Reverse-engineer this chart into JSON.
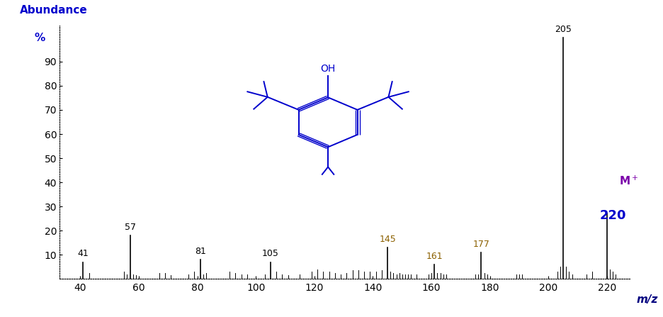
{
  "xlim": [
    33,
    228
  ],
  "ylim": [
    0,
    105
  ],
  "xticks": [
    40,
    60,
    80,
    100,
    120,
    140,
    160,
    180,
    200,
    220
  ],
  "yticks": [
    10,
    20,
    30,
    40,
    50,
    60,
    70,
    80,
    90
  ],
  "xlabel": "m/z",
  "ylabel_line1": "Abundance",
  "ylabel_line2": "%",
  "bg_color": "#ffffff",
  "label_color_black": "#000000",
  "label_color_brown": "#8B6000",
  "label_color_blue": "#0000cc",
  "mplus_color": "#7B00AA",
  "peaks": [
    {
      "mz": 41,
      "intensity": 7,
      "label": "41",
      "label_color": "#000000"
    },
    {
      "mz": 57,
      "intensity": 18,
      "label": "57",
      "label_color": "#000000"
    },
    {
      "mz": 81,
      "intensity": 8,
      "label": "81",
      "label_color": "#000000"
    },
    {
      "mz": 105,
      "intensity": 7,
      "label": "105",
      "label_color": "#000000"
    },
    {
      "mz": 145,
      "intensity": 13,
      "label": "145",
      "label_color": "#8B6000"
    },
    {
      "mz": 161,
      "intensity": 6,
      "label": "161",
      "label_color": "#8B6000"
    },
    {
      "mz": 177,
      "intensity": 11,
      "label": "177",
      "label_color": "#8B6000"
    },
    {
      "mz": 205,
      "intensity": 100,
      "label": "205",
      "label_color": "#000000"
    },
    {
      "mz": 220,
      "intensity": 27,
      "label": "",
      "label_color": "#0000cc"
    }
  ],
  "small_peaks": [
    {
      "mz": 43,
      "intensity": 2.5
    },
    {
      "mz": 55,
      "intensity": 3
    },
    {
      "mz": 56,
      "intensity": 2
    },
    {
      "mz": 58,
      "intensity": 2
    },
    {
      "mz": 59,
      "intensity": 1.5
    },
    {
      "mz": 67,
      "intensity": 2.5
    },
    {
      "mz": 69,
      "intensity": 2.5
    },
    {
      "mz": 71,
      "intensity": 1.5
    },
    {
      "mz": 77,
      "intensity": 2
    },
    {
      "mz": 79,
      "intensity": 3
    },
    {
      "mz": 82,
      "intensity": 2
    },
    {
      "mz": 83,
      "intensity": 2.5
    },
    {
      "mz": 91,
      "intensity": 3
    },
    {
      "mz": 93,
      "intensity": 2.5
    },
    {
      "mz": 95,
      "intensity": 2
    },
    {
      "mz": 97,
      "intensity": 2
    },
    {
      "mz": 103,
      "intensity": 2
    },
    {
      "mz": 107,
      "intensity": 3
    },
    {
      "mz": 109,
      "intensity": 2
    },
    {
      "mz": 111,
      "intensity": 1.5
    },
    {
      "mz": 115,
      "intensity": 2
    },
    {
      "mz": 119,
      "intensity": 3
    },
    {
      "mz": 121,
      "intensity": 4
    },
    {
      "mz": 123,
      "intensity": 3
    },
    {
      "mz": 125,
      "intensity": 3
    },
    {
      "mz": 127,
      "intensity": 2.5
    },
    {
      "mz": 129,
      "intensity": 2
    },
    {
      "mz": 131,
      "intensity": 2.5
    },
    {
      "mz": 133,
      "intensity": 3.5
    },
    {
      "mz": 135,
      "intensity": 3.5
    },
    {
      "mz": 137,
      "intensity": 3
    },
    {
      "mz": 139,
      "intensity": 3
    },
    {
      "mz": 141,
      "intensity": 3
    },
    {
      "mz": 143,
      "intensity": 3.5
    },
    {
      "mz": 146,
      "intensity": 3
    },
    {
      "mz": 147,
      "intensity": 2.5
    },
    {
      "mz": 148,
      "intensity": 2
    },
    {
      "mz": 149,
      "intensity": 2.5
    },
    {
      "mz": 150,
      "intensity": 2
    },
    {
      "mz": 151,
      "intensity": 2
    },
    {
      "mz": 152,
      "intensity": 2
    },
    {
      "mz": 153,
      "intensity": 2
    },
    {
      "mz": 155,
      "intensity": 2
    },
    {
      "mz": 159,
      "intensity": 2
    },
    {
      "mz": 160,
      "intensity": 2.5
    },
    {
      "mz": 162,
      "intensity": 2.5
    },
    {
      "mz": 163,
      "intensity": 2.5
    },
    {
      "mz": 164,
      "intensity": 2
    },
    {
      "mz": 165,
      "intensity": 2
    },
    {
      "mz": 175,
      "intensity": 2
    },
    {
      "mz": 176,
      "intensity": 2
    },
    {
      "mz": 178,
      "intensity": 2.5
    },
    {
      "mz": 179,
      "intensity": 2
    },
    {
      "mz": 189,
      "intensity": 2
    },
    {
      "mz": 190,
      "intensity": 2
    },
    {
      "mz": 191,
      "intensity": 2
    },
    {
      "mz": 203,
      "intensity": 3
    },
    {
      "mz": 204,
      "intensity": 5
    },
    {
      "mz": 206,
      "intensity": 5
    },
    {
      "mz": 207,
      "intensity": 3
    },
    {
      "mz": 208,
      "intensity": 2
    },
    {
      "mz": 213,
      "intensity": 2
    },
    {
      "mz": 215,
      "intensity": 3
    },
    {
      "mz": 221,
      "intensity": 4
    },
    {
      "mz": 222,
      "intensity": 3
    },
    {
      "mz": 223,
      "intensity": 2
    }
  ]
}
